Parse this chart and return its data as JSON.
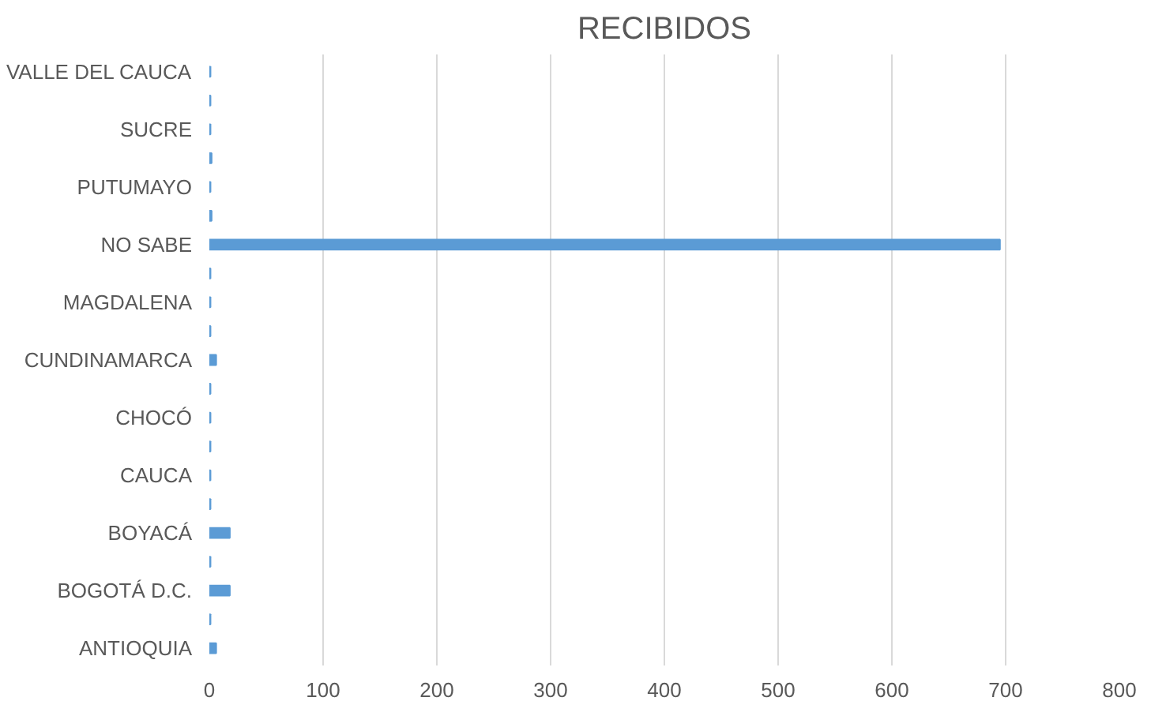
{
  "chart_data": {
    "type": "bar",
    "orientation": "horizontal",
    "title": "RECIBIDOS",
    "categories": [
      "VALLE DEL CAUCA",
      null,
      "SUCRE",
      null,
      "PUTUMAYO",
      null,
      "NO SABE",
      null,
      "MAGDALENA",
      null,
      "CUNDINAMARCA",
      null,
      "CHOCÓ",
      null,
      "CAUCA",
      null,
      "BOYACÁ",
      null,
      "BOGOTÁ D.C.",
      null,
      "ANTIOQUIA"
    ],
    "values": [
      1,
      1,
      1,
      2,
      1,
      2,
      695,
      1,
      1,
      1,
      6,
      1,
      1,
      1,
      1,
      1,
      18,
      1,
      18,
      1,
      6
    ],
    "color": "#5b9bd5",
    "xlim": [
      0,
      800
    ],
    "xticks": [
      0,
      100,
      200,
      300,
      400,
      500,
      600,
      700,
      800
    ],
    "grid": "x"
  }
}
